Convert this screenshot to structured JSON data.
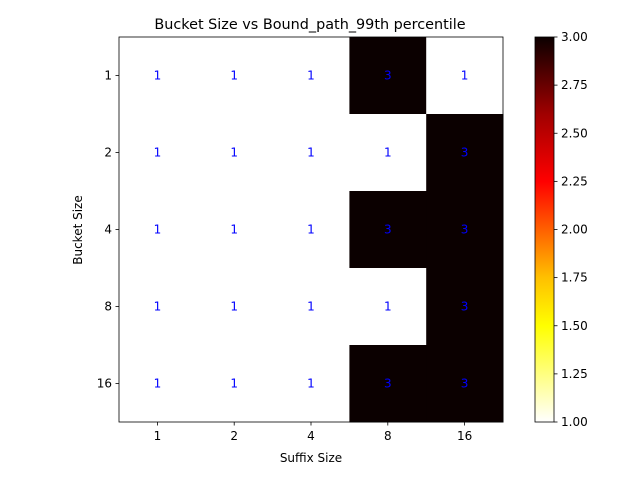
{
  "chart_data": {
    "type": "heatmap",
    "title": "Bucket Size vs Bound_path_99th percentile",
    "xlabel": "Suffix Size",
    "ylabel": "Bucket Size",
    "x_categories": [
      "1",
      "2",
      "4",
      "8",
      "16"
    ],
    "y_categories": [
      "1",
      "2",
      "4",
      "8",
      "16"
    ],
    "values": [
      [
        1,
        1,
        1,
        3,
        1
      ],
      [
        1,
        1,
        1,
        1,
        3
      ],
      [
        1,
        1,
        1,
        3,
        3
      ],
      [
        1,
        1,
        1,
        1,
        3
      ],
      [
        1,
        1,
        1,
        3,
        3
      ]
    ],
    "colormap": "hot_r",
    "vmin": 1.0,
    "vmax": 3.0,
    "colorbar_ticks": [
      "1.00",
      "1.25",
      "1.50",
      "1.75",
      "2.00",
      "2.25",
      "2.50",
      "2.75",
      "3.00"
    ],
    "cell_label_color": "#0000ff"
  }
}
